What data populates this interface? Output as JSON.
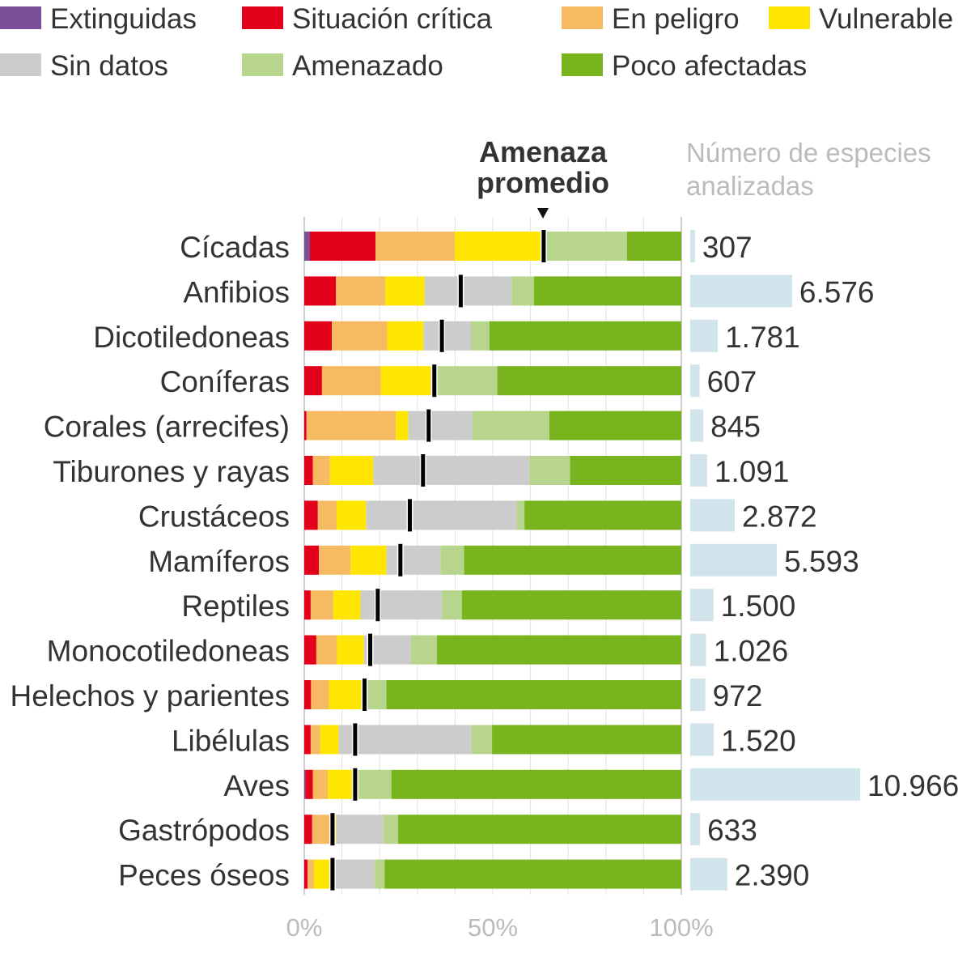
{
  "chart_data": {
    "type": "bar",
    "stacked": true,
    "orientation": "horizontal",
    "legend": {
      "placement": "top",
      "items": [
        {
          "key": "extinct",
          "label": "Extinguidas",
          "color": "#7b4e9a"
        },
        {
          "key": "critical",
          "label": "Situación crítica",
          "color": "#e2001a"
        },
        {
          "key": "endangered",
          "label": "En peligro",
          "color": "#f6bb62"
        },
        {
          "key": "vulnerable",
          "label": "Vulnerable",
          "color": "#ffe600"
        },
        {
          "key": "no_data",
          "label": "Sin datos",
          "color": "#cccccc"
        },
        {
          "key": "threatened",
          "label": "Amenazado",
          "color": "#b7d58c"
        },
        {
          "key": "least",
          "label": "Poco afectadas",
          "color": "#78b41e"
        }
      ]
    },
    "average_marker_label": [
      "Amenaza",
      "promedio"
    ],
    "average_marker_color": "#000000",
    "count_title": [
      "Número de especies",
      "analizadas"
    ],
    "count_bar_color": "#d1e4ec",
    "x_ticks": [
      "0%",
      "50%",
      "100%"
    ],
    "xlim": [
      0,
      100
    ],
    "grid": true,
    "categories": [
      "Cícadas",
      "Anfibios",
      "Dicotiledoneas",
      "Coníferas",
      "Corales (arrecifes)",
      "Tiburones y rayas",
      "Crustáceos",
      "Mamíferos",
      "Reptiles",
      "Monocotiledoneas",
      "Helechos y parientes",
      "Libélulas",
      "Aves",
      "Gastrópodos",
      "Peces óseos"
    ],
    "series": [
      {
        "name": "Extinguidas",
        "values": [
          1.5,
          0,
          0,
          0,
          0,
          0,
          0,
          0,
          0,
          0,
          0,
          0,
          0.3,
          0,
          0
        ]
      },
      {
        "name": "Situación crítica",
        "values": [
          17.4,
          8.4,
          7.3,
          4.7,
          0.6,
          2.3,
          3.6,
          3.9,
          1.7,
          3.2,
          1.8,
          1.7,
          2.0,
          2.1,
          0.9
        ]
      },
      {
        "name": "En peligro",
        "values": [
          21.0,
          13.1,
          14.7,
          15.6,
          23.7,
          4.5,
          5.0,
          8.4,
          6.0,
          5.5,
          4.8,
          2.5,
          4.0,
          4.8,
          1.7
        ]
      },
      {
        "name": "Vulnerable",
        "values": [
          23.0,
          10.4,
          9.6,
          13.3,
          3.3,
          11.5,
          7.8,
          9.5,
          7.2,
          7.1,
          9.1,
          4.9,
          7.4,
          1.6,
          5.1
        ]
      },
      {
        "name": "Sin datos",
        "values": [
          1.4,
          23.1,
          12.6,
          1.5,
          17.0,
          41.4,
          39.9,
          14.3,
          21.6,
          12.5,
          1.0,
          35.3,
          0.5,
          12.5,
          11.0
        ]
      },
      {
        "name": "Amenazado",
        "values": [
          21.3,
          5.9,
          4.9,
          16.1,
          20.4,
          10.8,
          2.1,
          6.3,
          5.3,
          6.9,
          5.1,
          5.4,
          8.9,
          3.9,
          2.6
        ]
      },
      {
        "name": "Poco afectadas",
        "values": [
          14.4,
          39.1,
          50.9,
          48.8,
          35.0,
          29.5,
          41.6,
          57.6,
          58.2,
          64.8,
          78.2,
          50.2,
          76.9,
          75.1,
          78.7
        ]
      }
    ],
    "average_threat": [
      63.5,
      41.5,
      36.5,
      34.5,
      33.0,
      31.5,
      28.0,
      25.5,
      19.5,
      17.5,
      16.0,
      13.5,
      13.5,
      7.5,
      7.5
    ],
    "species_counts": [
      307,
      6576,
      1781,
      607,
      845,
      1091,
      2872,
      5593,
      1500,
      1026,
      972,
      1520,
      10966,
      633,
      2390
    ],
    "species_count_labels": [
      "307",
      "6.576",
      "1.781",
      "607",
      "845",
      "1.091",
      "2.872",
      "5.593",
      "1.500",
      "1.026",
      "972",
      "1.520",
      "10.966",
      "633",
      "2.390"
    ]
  }
}
